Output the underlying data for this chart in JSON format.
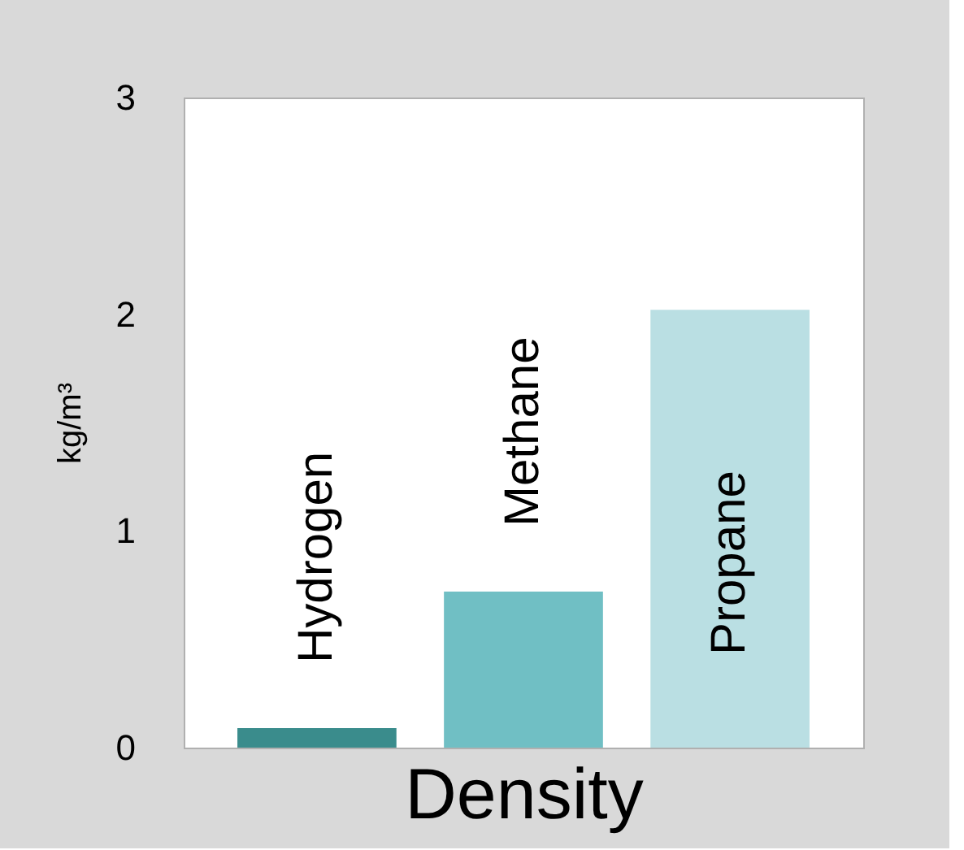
{
  "chart_data": {
    "type": "bar",
    "xlabel": "Density",
    "ylabel": "kg/m³",
    "categories": [
      "Hydrogen",
      "Methane",
      "Propane"
    ],
    "values": [
      0.09,
      0.72,
      2.02
    ],
    "colors": [
      "#3a8c8c",
      "#70bfc4",
      "#badfe3"
    ],
    "ylim": [
      0,
      3
    ],
    "yticks": [
      0,
      1,
      2,
      3
    ],
    "grid": false
  }
}
